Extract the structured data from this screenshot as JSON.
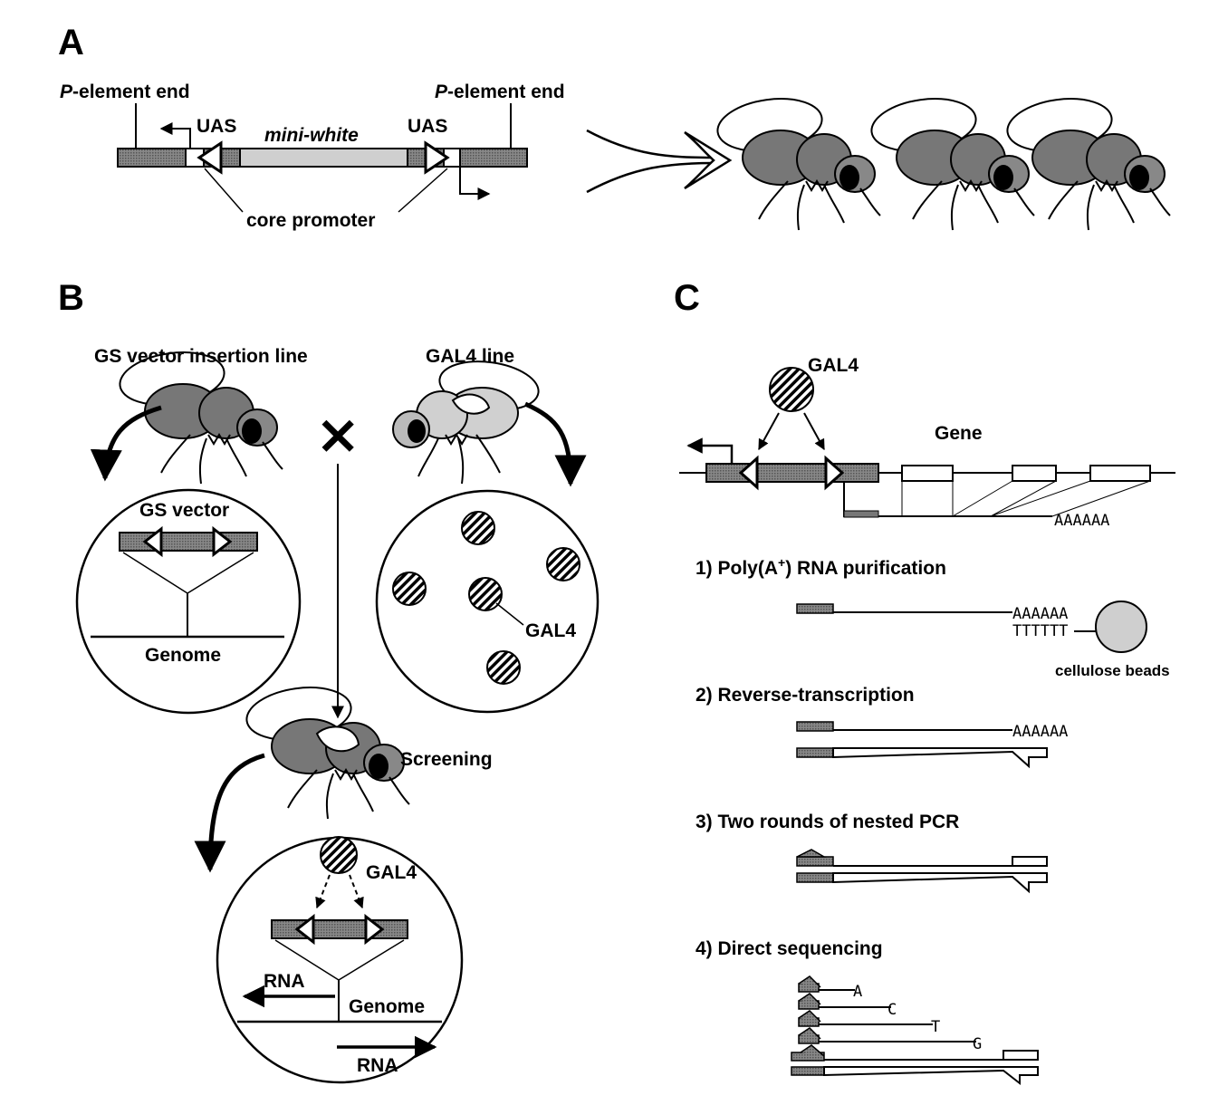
{
  "panels": {
    "a": "A",
    "b": "B",
    "c": "C"
  },
  "panel_a": {
    "p_element_end_left": "P-element end",
    "p_element_end_right": "P-element end",
    "p_italic": "P",
    "p_rest": "-element end",
    "uas_left": "UAS",
    "uas_right": "UAS",
    "mini_white": "mini-white",
    "core_promoter": "core promoter"
  },
  "panel_b": {
    "gs_line": "GS vector insertion line",
    "gal4_line": "GAL4 line",
    "gs_vector": "GS vector",
    "genome_top": "Genome",
    "gal4_label": "GAL4",
    "cross": "×",
    "screening": "Screening",
    "gal4_bottom": "GAL4",
    "rna_left": "RNA",
    "genome_bottom": "Genome",
    "rna_right": "RNA"
  },
  "panel_c": {
    "gal4": "GAL4",
    "gene": "Gene",
    "polya": "AAAAAA",
    "step1_prefix": "1) Poly(A",
    "step1_sup": "+",
    "step1_suffix": ") RNA purification",
    "polya_1": "AAAAAA",
    "polyt_1": "TTTTTT",
    "cellulose": "cellulose beads",
    "step2": "2) Reverse-transcription",
    "polya_2": "AAAAAA",
    "step3": "3) Two rounds of nested PCR",
    "step4": "4) Direct sequencing",
    "seq_a": "A",
    "seq_c": "C",
    "seq_t": "T",
    "seq_g": "G"
  },
  "colors": {
    "dark_fill": "#808080",
    "light_fill": "#cfcfcf",
    "fly_fill": "#7a7a7a",
    "fly_light": "#d8d8d8"
  }
}
